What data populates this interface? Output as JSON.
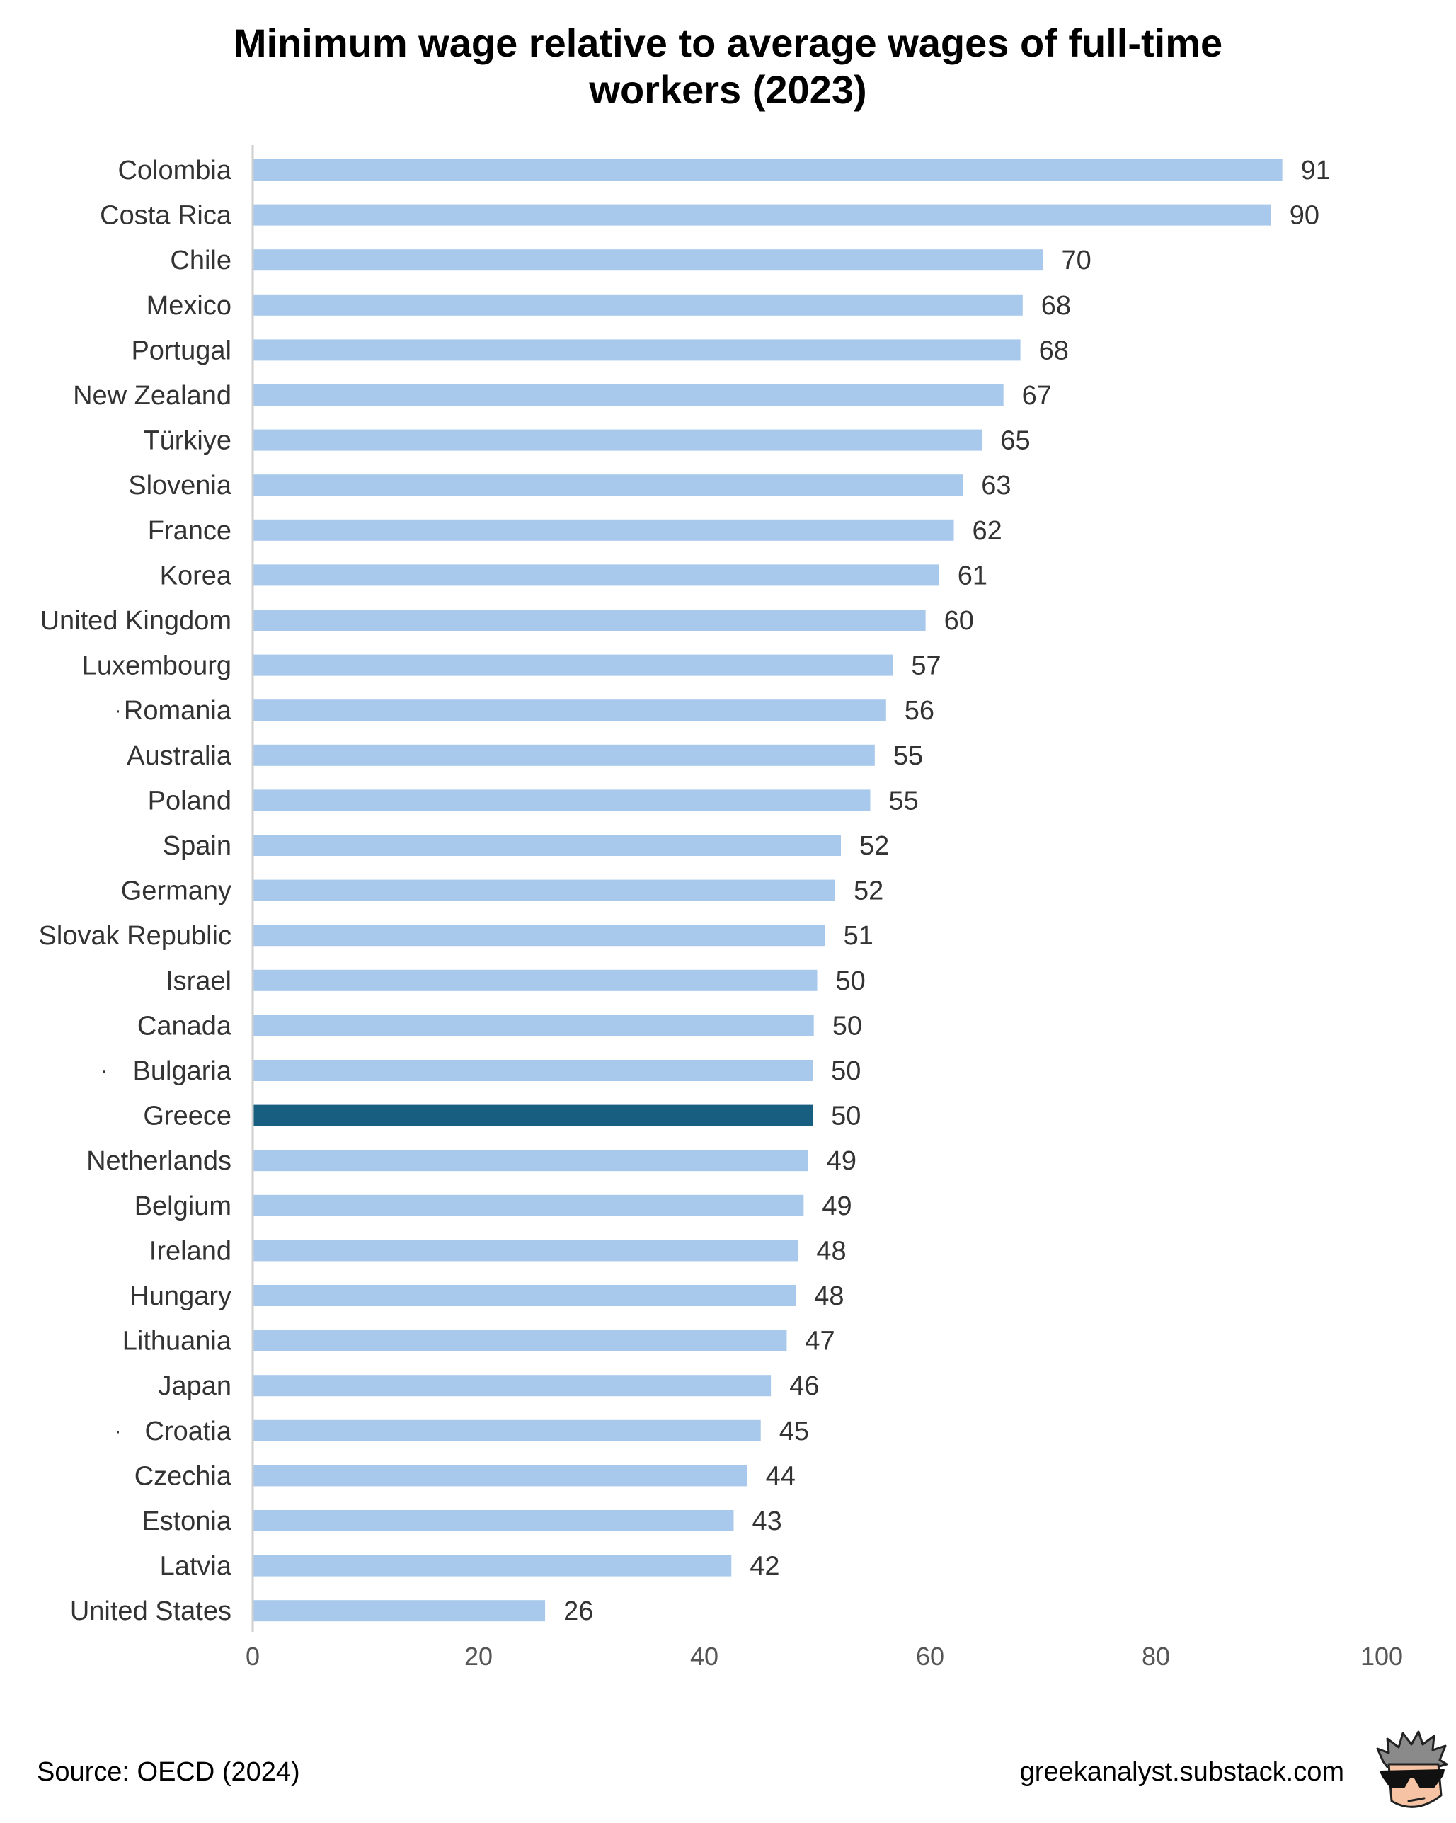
{
  "chart_data": {
    "type": "bar",
    "orientation": "horizontal",
    "title": [
      "Minimum wage relative to average wages of full-time",
      "workers (2023)"
    ],
    "categories": [
      "Colombia",
      "Costa Rica",
      "Chile",
      "Mexico",
      "Portugal",
      "New Zealand",
      "Türkiye",
      "Slovenia",
      "France",
      "Korea",
      "United Kingdom",
      "Luxembourg",
      "Romania",
      "Australia",
      "Poland",
      "Spain",
      "Germany",
      "Slovak Republic",
      "Israel",
      "Canada",
      "Bulgaria",
      "Greece",
      "Netherlands",
      "Belgium",
      "Ireland",
      "Hungary",
      "Lithuania",
      "Japan",
      "Croatia",
      "Czechia",
      "Estonia",
      "Latvia",
      "United States"
    ],
    "values": [
      91.2,
      90.2,
      70.0,
      68.2,
      68.0,
      66.5,
      64.6,
      62.9,
      62.1,
      60.8,
      59.6,
      56.7,
      56.1,
      55.1,
      54.7,
      52.1,
      51.6,
      50.7,
      50.0,
      49.7,
      49.6,
      49.6,
      49.2,
      48.8,
      48.3,
      48.1,
      47.3,
      45.9,
      45.0,
      43.8,
      42.6,
      42.4,
      25.9
    ],
    "value_labels": [
      "91",
      "90",
      "70",
      "68",
      "68",
      "67",
      "65",
      "63",
      "62",
      "61",
      "60",
      "57",
      "56",
      "55",
      "55",
      "52",
      "52",
      "51",
      "50",
      "50",
      "50",
      "50",
      "49",
      "49",
      "48",
      "48",
      "47",
      "46",
      "45",
      "44",
      "43",
      "42",
      "26"
    ],
    "marked_categories": [
      "Romania",
      "Bulgaria",
      "Croatia"
    ],
    "marker_symbol": "·",
    "highlight": "Greece",
    "colors": {
      "bar": "#a8c9ec",
      "highlight": "#175e80",
      "axis": "#cfcfcf"
    },
    "xlim": [
      0,
      100
    ],
    "xticks": [
      0,
      20,
      40,
      60,
      80,
      100
    ],
    "grid": false,
    "legend": "none"
  },
  "footer": {
    "source": "Source: OECD (2024)",
    "site": "greekanalyst.substack.com",
    "logo_icon": "sunglasses-avatar-icon"
  }
}
